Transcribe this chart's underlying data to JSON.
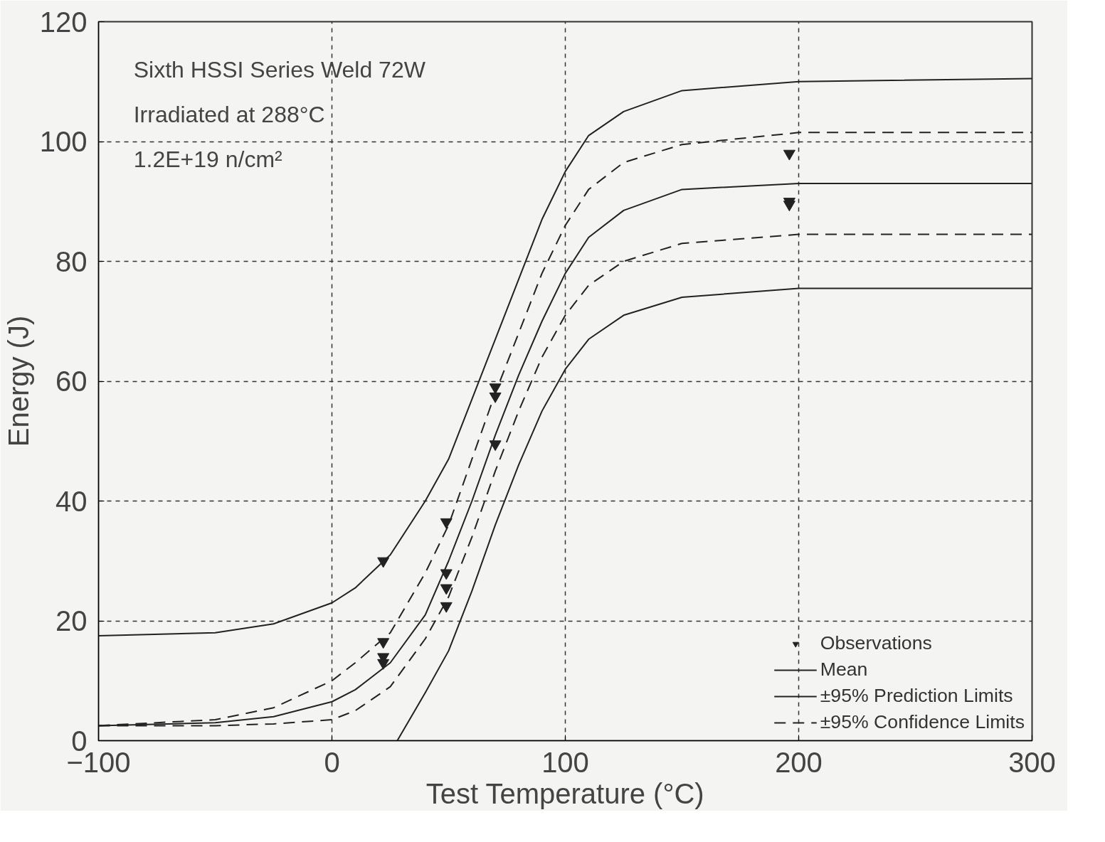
{
  "chart_data": {
    "type": "line",
    "xlabel": "Test Temperature (°C)",
    "ylabel": "Energy (J)",
    "annotations": [
      "Sixth HSSI Series Weld 72W",
      "Irradiated at 288°C",
      "1.2E+19 n/cm²"
    ],
    "xlim": [
      -100,
      300
    ],
    "ylim": [
      0,
      120
    ],
    "xticks": [
      -100,
      0,
      100,
      200,
      300
    ],
    "yticks": [
      0,
      20,
      40,
      60,
      80,
      100,
      120
    ],
    "grid": true,
    "legend": "bottom right",
    "series": [
      {
        "name": "Observations",
        "type": "scatter",
        "marker": "triangle",
        "color": "#222222",
        "x": [
          22,
          22,
          22,
          22,
          49,
          49,
          49,
          49,
          70,
          70,
          70,
          196,
          196,
          196
        ],
        "values": [
          30,
          16.5,
          14,
          13,
          36.5,
          28,
          25.5,
          22.5,
          59,
          57.5,
          49.5,
          98,
          90,
          89.5
        ]
      },
      {
        "name": "Mean",
        "color": "#222222",
        "line_style": "solid",
        "x": [
          -100,
          -50,
          -25,
          0,
          10,
          25,
          40,
          50,
          60,
          70,
          80,
          90,
          100,
          110,
          125,
          150,
          200,
          300
        ],
        "values": [
          2.5,
          3,
          4,
          6.5,
          8.5,
          13,
          21,
          30,
          40,
          51,
          61,
          70,
          78,
          84,
          88.5,
          92,
          93,
          93
        ]
      },
      {
        "name": "±95% Prediction Limits",
        "color": "#222222",
        "line_style": "solid",
        "x": [
          -100,
          -50,
          -25,
          0,
          10,
          25,
          40,
          50,
          60,
          70,
          80,
          90,
          100,
          110,
          125,
          150,
          200,
          300
        ],
        "values": [
          17.5,
          18,
          19.5,
          23,
          25.5,
          31,
          40,
          47,
          57,
          67,
          77,
          87,
          95,
          101,
          105,
          108.5,
          110,
          110.5
        ]
      },
      {
        "color": "#222222",
        "line_style": "solid",
        "x": [
          28,
          40,
          50,
          60,
          70,
          80,
          90,
          100,
          110,
          125,
          150,
          200,
          300
        ],
        "values": [
          0,
          8,
          15,
          25,
          36,
          46,
          55,
          62,
          67,
          71,
          74,
          75.5,
          75.5
        ]
      },
      {
        "name": "±95% Confidence Limits",
        "color": "#222222",
        "line_style": "dashed",
        "x": [
          -100,
          -50,
          -25,
          0,
          10,
          25,
          40,
          50,
          60,
          70,
          80,
          90,
          100,
          110,
          125,
          150,
          200,
          300
        ],
        "values": [
          2.5,
          3.5,
          5.5,
          10,
          13,
          18,
          28,
          36,
          47,
          58,
          68,
          78,
          86,
          92,
          96.5,
          99.5,
          101.5,
          101.5
        ]
      },
      {
        "color": "#222222",
        "line_style": "dashed",
        "x": [
          -100,
          -50,
          -25,
          0,
          10,
          25,
          40,
          50,
          60,
          70,
          80,
          90,
          100,
          110,
          125,
          150,
          200,
          300
        ],
        "values": [
          2.5,
          2.5,
          2.8,
          3.5,
          5,
          9,
          17,
          24,
          34,
          45,
          55,
          64,
          71,
          76,
          80,
          83,
          84.5,
          84.5
        ]
      }
    ]
  }
}
